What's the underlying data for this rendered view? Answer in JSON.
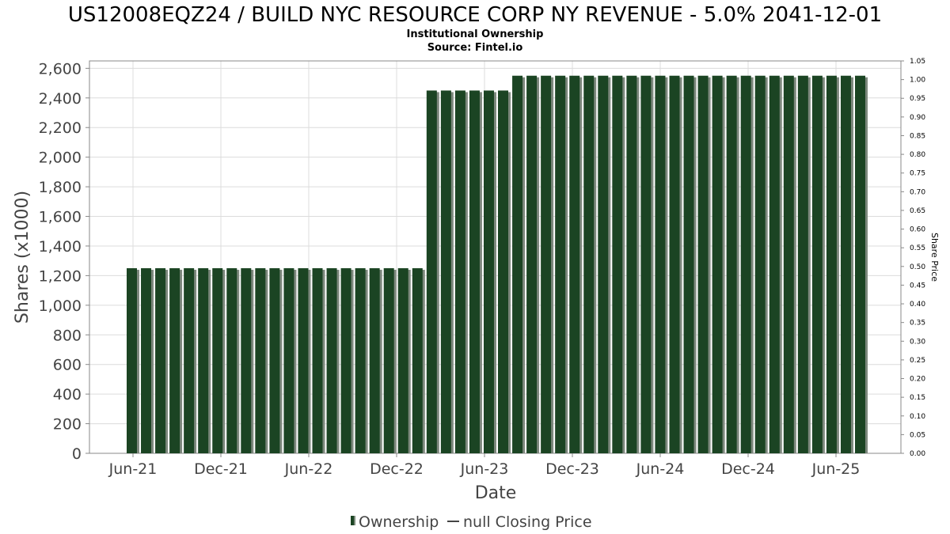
{
  "chart_data": {
    "type": "bar",
    "title": "US12008EQZ24 / BUILD NYC RESOURCE CORP NY REVENUE - 5.0% 2041-12-01",
    "subtitle": "Institutional Ownership",
    "source": "Source: Fintel.io",
    "xlabel": "Date",
    "ylabel": "Shares (x1000)",
    "y2label": "Share Price",
    "ylim": [
      0,
      2650
    ],
    "y2lim": [
      0,
      1.05
    ],
    "yticks": [
      "0",
      "200",
      "400",
      "600",
      "800",
      "1,000",
      "1,200",
      "1,400",
      "1,600",
      "1,800",
      "2,000",
      "2,200",
      "2,400",
      "2,600"
    ],
    "y2ticks": [
      "0.00",
      "0.05",
      "0.10",
      "0.15",
      "0.20",
      "0.25",
      "0.30",
      "0.35",
      "0.40",
      "0.45",
      "0.50",
      "0.55",
      "0.60",
      "0.65",
      "0.70",
      "0.75",
      "0.80",
      "0.85",
      "0.90",
      "0.95",
      "1.00",
      "1.05"
    ],
    "xticks": [
      "Jun-21",
      "Dec-21",
      "Jun-22",
      "Dec-22",
      "Jun-23",
      "Dec-23",
      "Jun-24",
      "Dec-24",
      "Jun-25"
    ],
    "grid": true,
    "legend_position": "bottom",
    "series": [
      {
        "name": "Ownership",
        "color": "#1b4423",
        "values": [
          1250,
          1250,
          1250,
          1250,
          1250,
          1250,
          1250,
          1250,
          1250,
          1250,
          1250,
          1250,
          1250,
          1250,
          1250,
          1250,
          1250,
          1250,
          1250,
          1250,
          1250,
          2450,
          2450,
          2450,
          2450,
          2450,
          2450,
          2550,
          2550,
          2550,
          2550,
          2550,
          2550,
          2550,
          2550,
          2550,
          2550,
          2550,
          2550,
          2550,
          2550,
          2550,
          2550,
          2550,
          2550,
          2550,
          2550,
          2550,
          2550,
          2550,
          2550,
          2550
        ]
      },
      {
        "name": "null Closing Price",
        "color": "#444444",
        "values": []
      }
    ]
  }
}
